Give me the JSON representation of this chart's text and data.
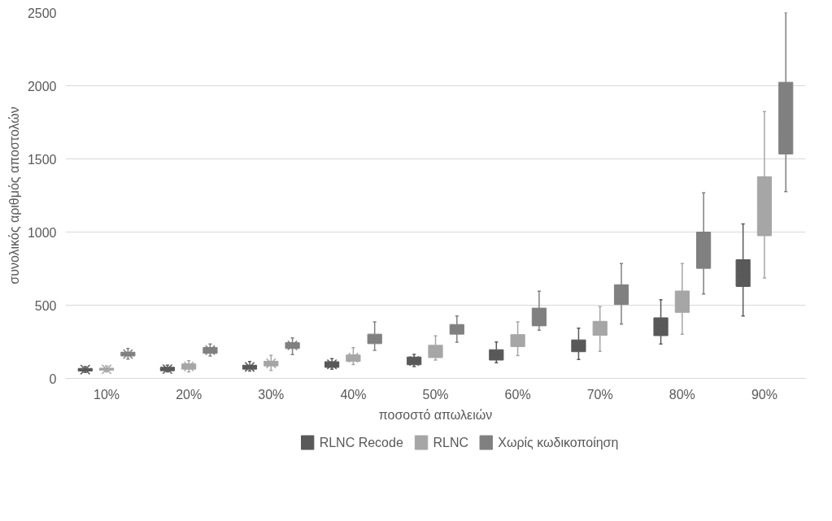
{
  "chart_data": {
    "type": "box",
    "xlabel": "ποσοστό απωλειών",
    "ylabel": "συνολικός αριθμός αποστολών",
    "categories": [
      "10%",
      "20%",
      "30%",
      "40%",
      "50%",
      "60%",
      "70%",
      "80%",
      "90%"
    ],
    "ylim": [
      0,
      2500
    ],
    "yticks": [
      0,
      500,
      1000,
      1500,
      2000,
      2500
    ],
    "grid": "y",
    "legend": "bottom",
    "marker": "cross",
    "series": [
      {
        "name": "RLNC Recode",
        "color": "#595959",
        "boxes": [
          {
            "low": 40,
            "q1": 50,
            "median": 60,
            "q3": 68,
            "high": 80,
            "mean": 60
          },
          {
            "low": 45,
            "q1": 52,
            "median": 63,
            "q3": 76,
            "high": 90,
            "mean": 63
          },
          {
            "low": 50,
            "q1": 63,
            "median": 78,
            "q3": 90,
            "high": 115,
            "mean": 78
          },
          {
            "low": 63,
            "q1": 75,
            "median": 96,
            "q3": 114,
            "high": 135,
            "mean": 96
          },
          {
            "low": 80,
            "q1": 93,
            "median": 119,
            "q3": 146,
            "high": 164,
            "mean": 119
          },
          {
            "low": 107,
            "q1": 125,
            "median": 160,
            "q3": 196,
            "high": 249,
            "mean": 160
          },
          {
            "low": 129,
            "q1": 182,
            "median": 220,
            "q3": 263,
            "high": 343,
            "mean": 225
          },
          {
            "low": 235,
            "q1": 292,
            "median": 357,
            "q3": 414,
            "high": 538,
            "mean": 357
          },
          {
            "low": 426,
            "q1": 628,
            "median": 695,
            "q3": 811,
            "high": 1056,
            "mean": 731
          }
        ]
      },
      {
        "name": "RLNC",
        "color": "#a6a6a6",
        "boxes": [
          {
            "low": 45,
            "q1": 55,
            "median": 62,
            "q3": 70,
            "high": 85,
            "mean": 62
          },
          {
            "low": 45,
            "q1": 63,
            "median": 81,
            "q3": 99,
            "high": 121,
            "mean": 81
          },
          {
            "low": 54,
            "q1": 85,
            "median": 103,
            "q3": 117,
            "high": 157,
            "mean": 103
          },
          {
            "low": 94,
            "q1": 116,
            "median": 142,
            "q3": 160,
            "high": 210,
            "mean": 142
          },
          {
            "low": 125,
            "q1": 142,
            "median": 187,
            "q3": 226,
            "high": 290,
            "mean": 192
          },
          {
            "low": 155,
            "q1": 217,
            "median": 258,
            "q3": 299,
            "high": 386,
            "mean": 258
          },
          {
            "low": 185,
            "q1": 294,
            "median": 357,
            "q3": 390,
            "high": 490,
            "mean": 348
          },
          {
            "low": 301,
            "q1": 451,
            "median": 517,
            "q3": 597,
            "high": 785,
            "mean": 535
          },
          {
            "low": 686,
            "q1": 975,
            "median": 1109,
            "q3": 1378,
            "high": 1824,
            "mean": 1177
          }
        ]
      },
      {
        "name": "Χωρίς κωδικοποίηση",
        "color": "#808080",
        "boxes": [
          {
            "low": 132,
            "q1": 153,
            "median": 166,
            "q3": 179,
            "high": 204,
            "mean": 166
          },
          {
            "low": 153,
            "q1": 171,
            "median": 193,
            "q3": 211,
            "high": 235,
            "mean": 193
          },
          {
            "low": 162,
            "q1": 204,
            "median": 226,
            "q3": 244,
            "high": 276,
            "mean": 226
          },
          {
            "low": 192,
            "q1": 237,
            "median": 270,
            "q3": 302,
            "high": 386,
            "mean": 270
          },
          {
            "low": 247,
            "q1": 302,
            "median": 338,
            "q3": 368,
            "high": 427,
            "mean": 338
          },
          {
            "low": 329,
            "q1": 359,
            "median": 395,
            "q3": 480,
            "high": 596,
            "mean": 422
          },
          {
            "low": 371,
            "q1": 505,
            "median": 580,
            "q3": 640,
            "high": 785,
            "mean": 580
          },
          {
            "low": 576,
            "q1": 752,
            "median": 870,
            "q3": 1000,
            "high": 1268,
            "mean": 883
          },
          {
            "low": 1277,
            "q1": 1533,
            "median": 1715,
            "q3": 2024,
            "high": 2500,
            "mean": 1774
          }
        ]
      }
    ]
  }
}
